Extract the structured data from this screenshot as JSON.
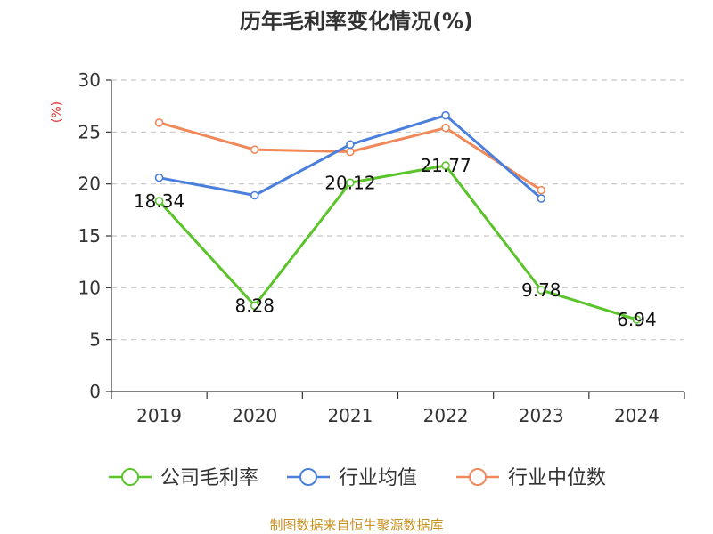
{
  "chart_data": {
    "type": "line",
    "title": "历年毛利率变化情况(%)",
    "ylabel": "(%)",
    "xlabel": "",
    "categories": [
      "2019",
      "2020",
      "2021",
      "2022",
      "2023",
      "2024"
    ],
    "ylim": [
      0,
      30
    ],
    "yticks": [
      "0",
      "5",
      "10",
      "15",
      "20",
      "25",
      "30"
    ],
    "grid": true,
    "legend_position": "bottom",
    "series": [
      {
        "name": "公司毛利率",
        "color": "#5bc42b",
        "values": [
          18.34,
          8.28,
          20.12,
          21.77,
          9.78,
          6.94
        ],
        "labels": [
          "18.34",
          "8.28",
          "20.12",
          "21.77",
          "9.78",
          "6.94"
        ]
      },
      {
        "name": "行业均值",
        "color": "#4a7fdc",
        "values": [
          20.6,
          18.9,
          23.8,
          26.6,
          18.6,
          null
        ]
      },
      {
        "name": "行业中位数",
        "color": "#f0895a",
        "values": [
          25.9,
          23.3,
          23.1,
          25.4,
          19.4,
          null
        ]
      }
    ]
  },
  "source": "制图数据来自恒生聚源数据库"
}
